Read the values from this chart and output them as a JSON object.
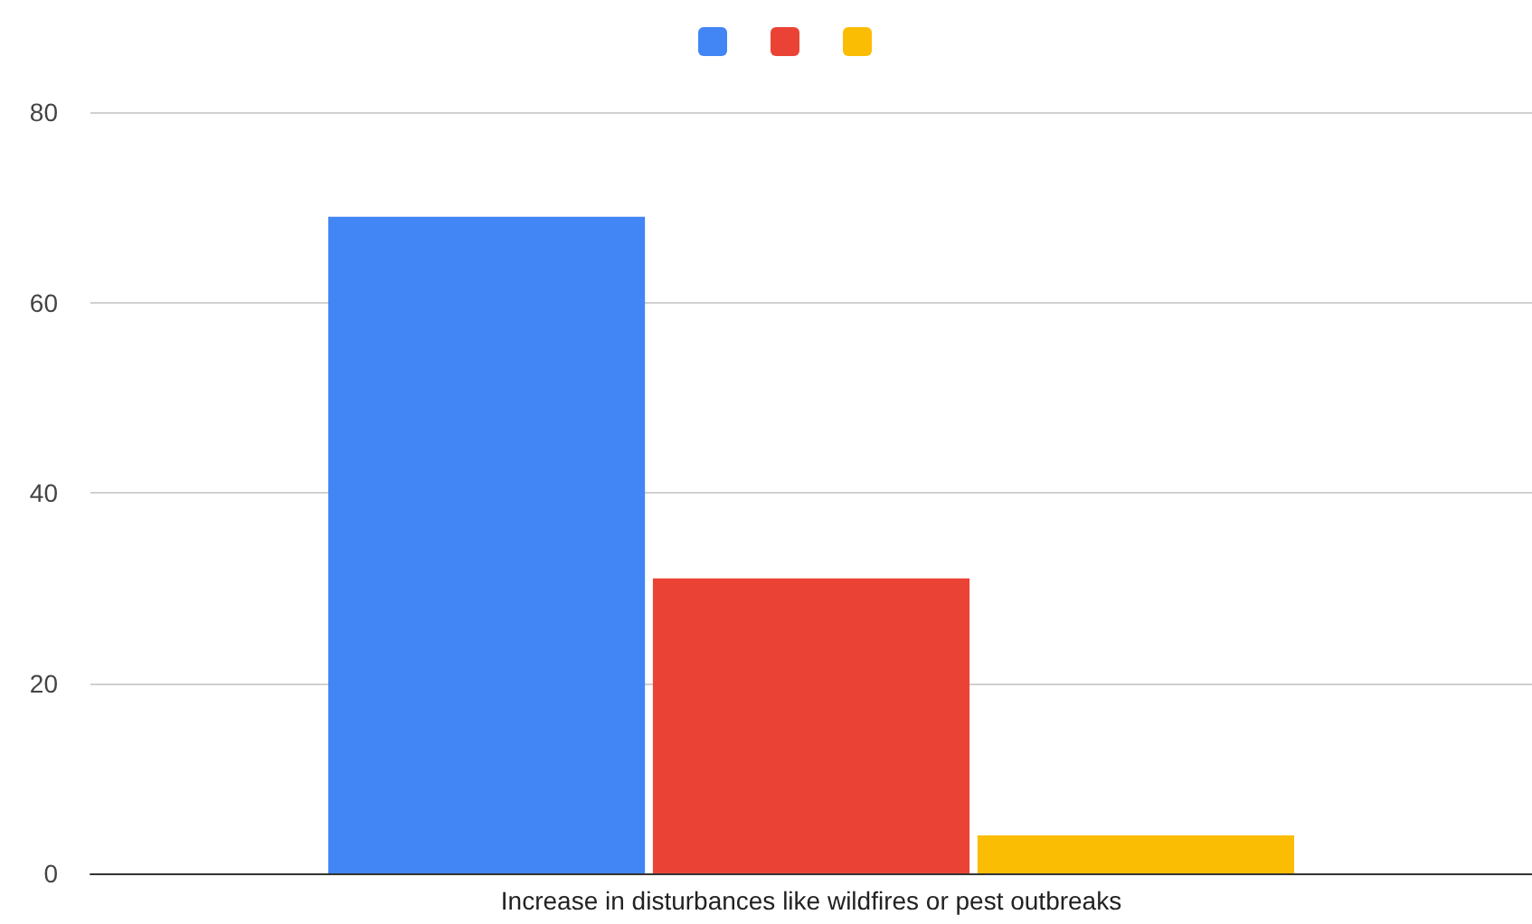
{
  "chart_data": {
    "type": "bar",
    "categories": [
      "Increase in disturbances like wildfires or pest outbreaks"
    ],
    "series": [
      {
        "color": "#4285f4",
        "values": [
          69
        ]
      },
      {
        "color": "#ea4335",
        "values": [
          31
        ]
      },
      {
        "color": "#fbbc04",
        "values": [
          4
        ]
      }
    ],
    "ylim": [
      0,
      80
    ],
    "yticks": [
      0,
      20,
      40,
      60,
      80
    ],
    "grid": "y"
  }
}
